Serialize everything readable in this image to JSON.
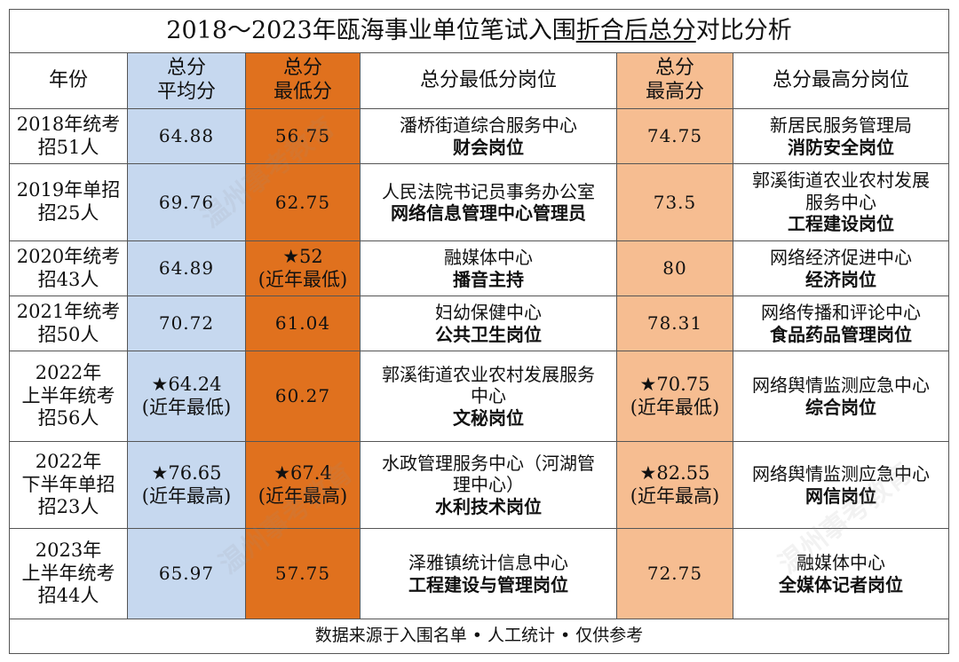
{
  "title": {
    "prefix": "2018～2023年瓯海事业单位笔试入围",
    "underlined": "折合后总分",
    "suffix": "对比分析"
  },
  "headers": {
    "year": "年份",
    "avg_l1": "总分",
    "avg_l2": "平均分",
    "min_l1": "总分",
    "min_l2": "最低分",
    "min_pos": "总分最低分岗位",
    "max_l1": "总分",
    "max_l2": "最高分",
    "max_pos": "总分最高分岗位"
  },
  "rows": [
    {
      "year_l1": "2018年统考",
      "year_l2": "招51人",
      "year_l3": "",
      "avg": "64.88",
      "avg_note": "",
      "min": "56.75",
      "min_note": "",
      "min_pos_l1": "潘桥街道综合服务中心",
      "min_pos_l2": "",
      "min_pos_l3": "财会岗位",
      "max": "74.75",
      "max_note": "",
      "max_pos_l1": "新居民服务管理局",
      "max_pos_l2": "",
      "max_pos_l3": "消防安全岗位"
    },
    {
      "year_l1": "2019年单招",
      "year_l2": "招25人",
      "year_l3": "",
      "avg": "69.76",
      "avg_note": "",
      "min": "62.75",
      "min_note": "",
      "min_pos_l1": "人民法院书记员事务办公室",
      "min_pos_l2": "",
      "min_pos_l3": "网络信息管理中心管理员",
      "max": "73.5",
      "max_note": "",
      "max_pos_l1": "郭溪街道农业农村发展",
      "max_pos_l2": "服务中心",
      "max_pos_l3": "工程建设岗位"
    },
    {
      "year_l1": "2020年统考",
      "year_l2": "招43人",
      "year_l3": "",
      "avg": "64.89",
      "avg_note": "",
      "min": "★52",
      "min_note": "(近年最低)",
      "min_pos_l1": "融媒体中心",
      "min_pos_l2": "",
      "min_pos_l3": "播音主持",
      "max": "80",
      "max_note": "",
      "max_pos_l1": "网络经济促进中心",
      "max_pos_l2": "",
      "max_pos_l3": "经济岗位"
    },
    {
      "year_l1": "2021年统考",
      "year_l2": "招50人",
      "year_l3": "",
      "avg": "70.72",
      "avg_note": "",
      "min": "61.04",
      "min_note": "",
      "min_pos_l1": "妇幼保健中心",
      "min_pos_l2": "",
      "min_pos_l3": "公共卫生岗位",
      "max": "78.31",
      "max_note": "",
      "max_pos_l1": "网络传播和评论中心",
      "max_pos_l2": "",
      "max_pos_l3": "食品药品管理岗位"
    },
    {
      "year_l1": "2022年",
      "year_l2": "上半年统考",
      "year_l3": "招56人",
      "avg": "★64.24",
      "avg_note": "(近年最低)",
      "min": "60.27",
      "min_note": "",
      "min_pos_l1": "郭溪街道农业农村发展服务",
      "min_pos_l2": "中心",
      "min_pos_l3": "文秘岗位",
      "max": "★70.75",
      "max_note": "(近年最低)",
      "max_pos_l1": "网络舆情监测应急中心",
      "max_pos_l2": "",
      "max_pos_l3": "综合岗位"
    },
    {
      "year_l1": "2022年",
      "year_l2": "下半年单招",
      "year_l3": "招23人",
      "avg": "★76.65",
      "avg_note": "(近年最高)",
      "min": "★67.4",
      "min_note": "(近年最高)",
      "min_pos_l1": "水政管理服务中心（河湖管",
      "min_pos_l2": "理中心）",
      "min_pos_l3": "水利技术岗位",
      "max": "★82.55",
      "max_note": "(近年最高)",
      "max_pos_l1": "网络舆情监测应急中心",
      "max_pos_l2": "",
      "max_pos_l3": "网信岗位"
    },
    {
      "year_l1": "2023年",
      "year_l2": "上半年统考",
      "year_l3": "招44人",
      "avg": "65.97",
      "avg_note": "",
      "min": "57.75",
      "min_note": "",
      "min_pos_l1": "泽雅镇统计信息中心",
      "min_pos_l2": "",
      "min_pos_l3": "工程建设与管理岗位",
      "max": "72.75",
      "max_note": "",
      "max_pos_l1": "融媒体中心",
      "max_pos_l2": "",
      "max_pos_l3": "全媒体记者岗位"
    }
  ],
  "footer": "数据来源于入围名单 • 人工统计 • 仅供参考",
  "watermark": "温州事考教育",
  "colors": {
    "avg_col": "#c6d8ef",
    "min_col": "#e0711e",
    "max_col": "#f6bd91"
  }
}
